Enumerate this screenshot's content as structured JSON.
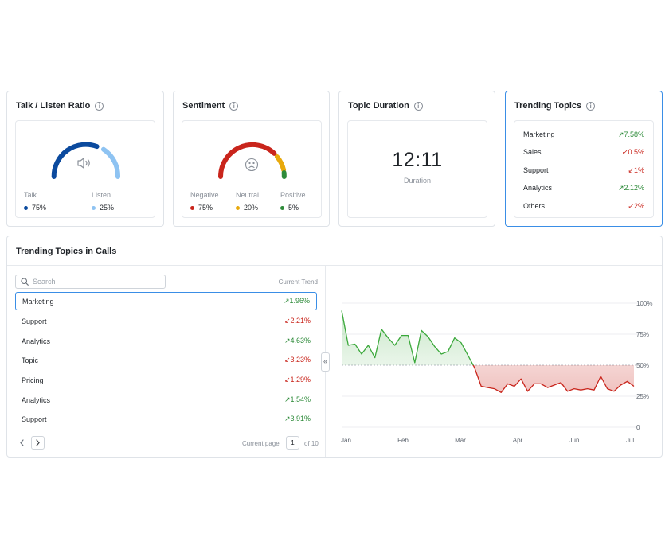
{
  "cards": {
    "talk_listen": {
      "title": "Talk / Listen Ratio",
      "icon": "speaker-icon",
      "items": [
        {
          "label": "Talk",
          "value": "75%",
          "color": "#0b4a9e"
        },
        {
          "label": "Listen",
          "value": "25%",
          "color": "#8ec3f2"
        }
      ]
    },
    "sentiment": {
      "title": "Sentiment",
      "icon": "sad-face-icon",
      "items": [
        {
          "label": "Negative",
          "value": "75%",
          "color": "#c9251c"
        },
        {
          "label": "Neutral",
          "value": "20%",
          "color": "#e8a90c"
        },
        {
          "label": "Positive",
          "value": "5%",
          "color": "#2e8b3a"
        }
      ]
    },
    "topic_duration": {
      "title": "Topic Duration",
      "value": "12:11",
      "sub": "Duration"
    },
    "trending_topics": {
      "title": "Trending Topics",
      "rows": [
        {
          "name": "Marketing",
          "trend": "↗7.58%",
          "dir": "up"
        },
        {
          "name": "Sales",
          "trend": "↙0.5%",
          "dir": "down"
        },
        {
          "name": "Support",
          "trend": "↙1%",
          "dir": "down"
        },
        {
          "name": "Analytics",
          "trend": "↗2.12%",
          "dir": "up"
        },
        {
          "name": "Others",
          "trend": "↙2%",
          "dir": "down"
        }
      ]
    }
  },
  "calls": {
    "title": "Trending Topics in Calls",
    "search_placeholder": "Search",
    "column_header": "Current Trend",
    "rows": [
      {
        "name": "Marketing",
        "trend": "↗1.96%",
        "dir": "up",
        "selected": true
      },
      {
        "name": "Support",
        "trend": "↙2.21%",
        "dir": "down"
      },
      {
        "name": "Analytics",
        "trend": "↗4.63%",
        "dir": "up"
      },
      {
        "name": "Topic",
        "trend": "↙3.23%",
        "dir": "down"
      },
      {
        "name": "Pricing",
        "trend": "↙1.29%",
        "dir": "down"
      },
      {
        "name": "Analytics",
        "trend": "↗1.54%",
        "dir": "up"
      },
      {
        "name": "Support",
        "trend": "↗3.91%",
        "dir": "up"
      }
    ],
    "pager": {
      "current_page_label": "Current page",
      "page": "1",
      "of_label": "of 10"
    }
  },
  "chart_data": {
    "type": "area",
    "title": "",
    "xlabel": "",
    "ylabel": "",
    "x_ticks": [
      "Jan",
      "Feb",
      "Mar",
      "Apr",
      "Jun",
      "Jul"
    ],
    "y_ticks": [
      "100%",
      "75%",
      "50%",
      "25%",
      "0"
    ],
    "ylim": [
      0,
      100
    ],
    "baseline": 50,
    "colors": {
      "above": "#3aa83a",
      "below": "#c9251c"
    },
    "values": [
      94,
      66,
      67,
      59,
      66,
      56,
      79,
      72,
      66,
      74,
      74,
      52,
      78,
      73,
      65,
      59,
      61,
      72,
      68,
      58,
      48,
      33,
      32,
      31,
      28,
      35,
      33,
      39,
      29,
      35,
      35,
      32,
      34,
      36,
      29,
      31,
      30,
      31,
      30,
      41,
      31,
      29,
      34,
      37,
      33
    ]
  }
}
